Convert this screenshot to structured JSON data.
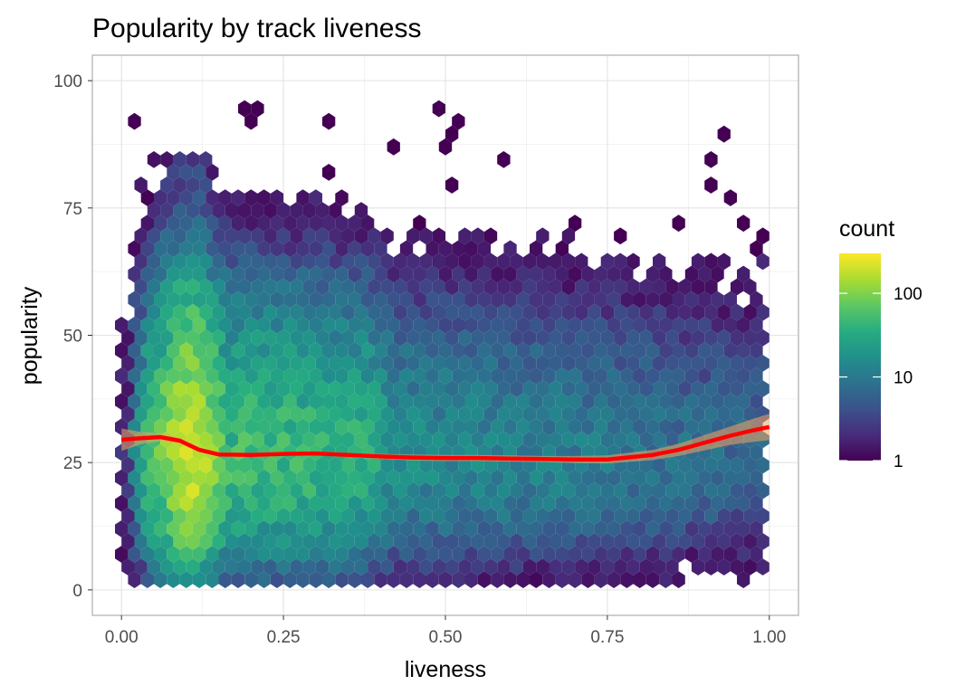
{
  "chart_data": {
    "type": "heatmap",
    "subtype": "hexbin",
    "title": "Popularity by track liveness",
    "xlabel": "liveness",
    "ylabel": "popularity",
    "xlim": [
      -0.045,
      1.045
    ],
    "ylim": [
      -5,
      105
    ],
    "x_ticks": [
      0,
      0.25,
      0.5,
      0.75,
      1
    ],
    "x_tick_labels": [
      "0.00",
      "0.25",
      "0.50",
      "0.75",
      "1.00"
    ],
    "y_ticks": [
      0,
      25,
      50,
      75,
      100
    ],
    "y_tick_labels": [
      "0",
      "25",
      "50",
      "75",
      "100"
    ],
    "grid": true,
    "panel_border": true,
    "fill_scale": {
      "name": "count",
      "transform": "log10",
      "range": [
        1,
        300
      ],
      "palette": "viridis",
      "colors": [
        "#440154",
        "#472D7B",
        "#3B528B",
        "#2C728E",
        "#21908C",
        "#27AD81",
        "#5DC863",
        "#AADC32",
        "#FDE725"
      ],
      "breaks": [
        1,
        10,
        100
      ],
      "break_labels": [
        "1",
        "10",
        "100"
      ],
      "legend_position": "right"
    },
    "hex_binwidth": [
      0.02,
      2.5
    ],
    "smooth": {
      "color": "#FF0000",
      "band_color": "#F4A460",
      "x": [
        0,
        0.03,
        0.06,
        0.09,
        0.12,
        0.15,
        0.2,
        0.25,
        0.3,
        0.35,
        0.4,
        0.45,
        0.5,
        0.55,
        0.6,
        0.65,
        0.7,
        0.75,
        0.78,
        0.82,
        0.86,
        0.9,
        0.94,
        0.97,
        1.0
      ],
      "y": [
        29.5,
        29.8,
        30.0,
        29.3,
        27.5,
        26.6,
        26.5,
        26.7,
        26.8,
        26.5,
        26.2,
        26.0,
        25.9,
        25.9,
        25.8,
        25.7,
        25.6,
        25.6,
        26.0,
        26.5,
        27.5,
        28.9,
        30.3,
        31.2,
        32.0
      ],
      "se": [
        2.2,
        1.2,
        0.8,
        0.6,
        0.5,
        0.4,
        0.4,
        0.4,
        0.4,
        0.4,
        0.5,
        0.6,
        0.6,
        0.6,
        0.6,
        0.6,
        0.7,
        0.8,
        0.9,
        1.0,
        1.2,
        1.5,
        1.8,
        2.2,
        2.6
      ]
    }
  }
}
